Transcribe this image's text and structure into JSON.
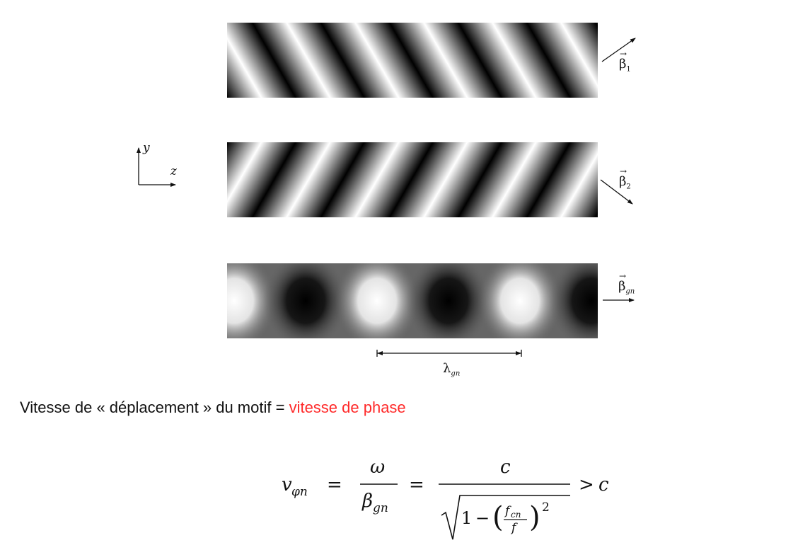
{
  "axes_labels": {
    "y": "y",
    "z": "z"
  },
  "wave_labels": [
    {
      "symbol": "β",
      "subscript": "1",
      "vector_mark": "→"
    },
    {
      "symbol": "β",
      "subscript": "2",
      "vector_mark": "→"
    },
    {
      "symbol": "β",
      "subscript": "gn",
      "vector_mark": "→"
    }
  ],
  "wavelength_label": {
    "symbol": "λ",
    "subscript": "gn"
  },
  "sentence": {
    "prefix": "Vitesse de « déplacement » du motif = ",
    "highlight": "vitesse de phase"
  },
  "colors": {
    "highlight": "#ff2a2a",
    "ink": "#111111"
  },
  "equation": {
    "lhs_base": "v",
    "lhs_sub": "φn",
    "eq1": "=",
    "num1": "ω",
    "den1_base": "β",
    "den1_sub": "gn",
    "eq2": "=",
    "num2": "c",
    "sqrt_one": "1",
    "minus": "−",
    "frac_num_base": "f",
    "frac_num_sub": "cn",
    "frac_den": "f",
    "exponent": "2",
    "gt": ">",
    "rhs": "c"
  }
}
